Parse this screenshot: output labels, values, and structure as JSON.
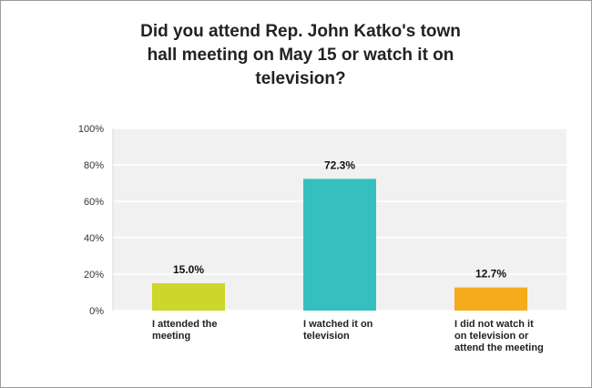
{
  "chart_data": {
    "type": "bar",
    "title": "Did you attend Rep. John Katko's town\nhall meeting on May 15 or watch it on\ntelevision?",
    "categories": [
      [
        "I attended the",
        "meeting"
      ],
      [
        "I watched it on",
        "television"
      ],
      [
        "I did not watch it",
        "on television or",
        "attend the meeting"
      ]
    ],
    "values": [
      15.0,
      72.3,
      12.7
    ],
    "data_labels": [
      "15.0%",
      "72.3%",
      "12.7%"
    ],
    "colors": [
      "#cdd62a",
      "#36bfbf",
      "#f5ab1b"
    ],
    "ylim": [
      0,
      100
    ],
    "yticks": [
      "0%",
      "20%",
      "40%",
      "60%",
      "80%",
      "100%"
    ],
    "grid": true
  }
}
